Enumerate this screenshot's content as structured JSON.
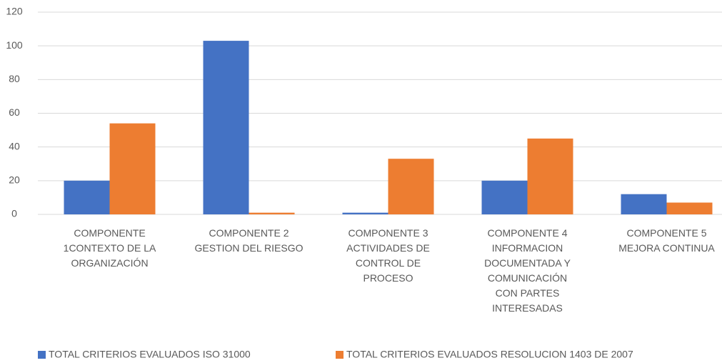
{
  "chart_data": {
    "type": "bar",
    "categories": [
      "COMPONENTE\n1CONTEXTO DE LA\nORGANIZACIÓN",
      "COMPONENTE 2\nGESTION  DEL RIESGO",
      "COMPONENTE 3\nACTIVIDADES DE\nCONTROL DE\nPROCESO",
      "COMPONENTE 4\nINFORMACION\nDOCUMENTADA  Y\nCOMUNICACIÓN\nCON PARTES\nINTERESADAS",
      "COMPONENTE 5\nMEJORA CONTINUA"
    ],
    "series": [
      {
        "name": "TOTAL CRITERIOS  EVALUADOS  ISO 31000",
        "color": "#4472c4",
        "values": [
          20,
          103,
          1,
          20,
          12
        ]
      },
      {
        "name": "TOTAL CRITERIOS  EVALUADOS RESOLUCION 1403 DE 2007",
        "color": "#ed7d31",
        "values": [
          54,
          1,
          33,
          45,
          7
        ]
      }
    ],
    "ylim": [
      0,
      120
    ],
    "yticks": [
      0,
      20,
      40,
      60,
      80,
      100,
      120
    ],
    "grid": true,
    "legend": "bottom"
  }
}
